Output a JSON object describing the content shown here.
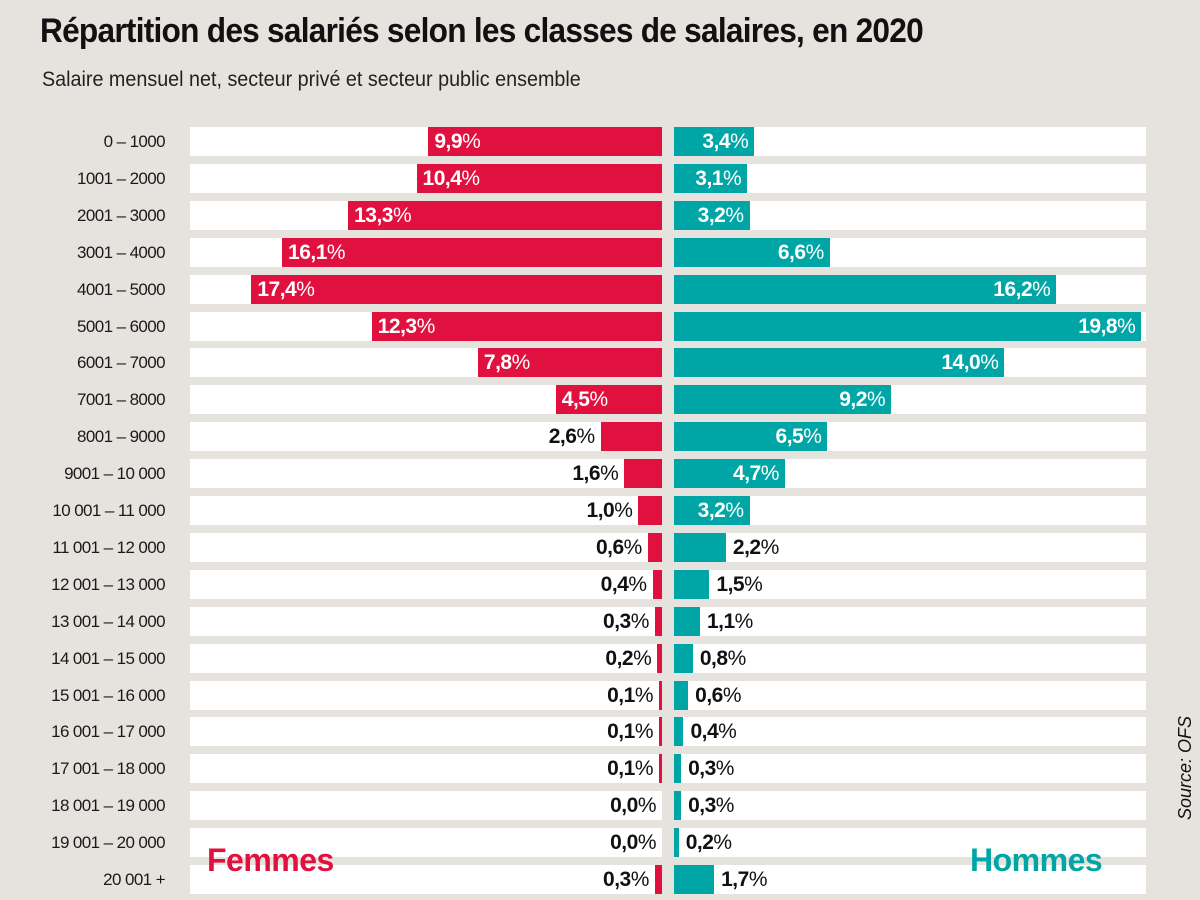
{
  "chart_data": {
    "type": "bar",
    "orientation": "horizontal-diverging",
    "title": "Répartition des salariés selon les classes de salaires, en 2020",
    "subtitle": "Salaire mensuel net, secteur privé et secteur public ensemble",
    "source": "Source: OFS",
    "categories": [
      "0 – 1000",
      "1001 – 2000",
      "2001 – 3000",
      "3001 – 4000",
      "4001 – 5000",
      "5001 – 6000",
      "6001 – 7000",
      "7001 – 8000",
      "8001 – 9000",
      "9001 – 10 000",
      "10 001 – 11 000",
      "11 001 – 12 000",
      "12 001 – 13 000",
      "13 001 – 14 000",
      "14 001 – 15 000",
      "15 001 – 16 000",
      "16 001 – 17 000",
      "17 001 – 18 000",
      "18 001 – 19 000",
      "19 001 – 20 000",
      "20 001 +"
    ],
    "series": [
      {
        "name": "Femmes",
        "color": "#e0103f",
        "side": "left",
        "values": [
          9.9,
          10.4,
          13.3,
          16.1,
          17.4,
          12.3,
          7.8,
          4.5,
          2.6,
          1.6,
          1.0,
          0.6,
          0.4,
          0.3,
          0.2,
          0.1,
          0.1,
          0.1,
          0.0,
          0.0,
          0.3
        ],
        "labels": [
          "9,9",
          "10,4",
          "13,3",
          "16,1",
          "17,4",
          "12,3",
          "7,8",
          "4,5",
          "2,6",
          "1,6",
          "1,0",
          "0,6",
          "0,4",
          "0,3",
          "0,2",
          "0,1",
          "0,1",
          "0,1",
          "0,0",
          "0,0",
          "0,3"
        ]
      },
      {
        "name": "Hommes",
        "color": "#00a6a6",
        "side": "right",
        "values": [
          3.4,
          3.1,
          3.2,
          6.6,
          16.2,
          19.8,
          14.0,
          9.2,
          6.5,
          4.7,
          3.2,
          2.2,
          1.5,
          1.1,
          0.8,
          0.6,
          0.4,
          0.3,
          0.3,
          0.2,
          1.7
        ],
        "labels": [
          "3,4",
          "3,1",
          "3,2",
          "6,6",
          "16,2",
          "19,8",
          "14,0",
          "9,2",
          "6,5",
          "4,7",
          "3,2",
          "2,2",
          "1,5",
          "1,1",
          "0,8",
          "0,6",
          "0,4",
          "0,3",
          "0,3",
          "0,2",
          "1,7"
        ]
      }
    ],
    "unit_suffix": "%",
    "xlim": [
      0,
      20
    ],
    "grid": false,
    "legend": [
      "Femmes",
      "Hommes"
    ]
  }
}
